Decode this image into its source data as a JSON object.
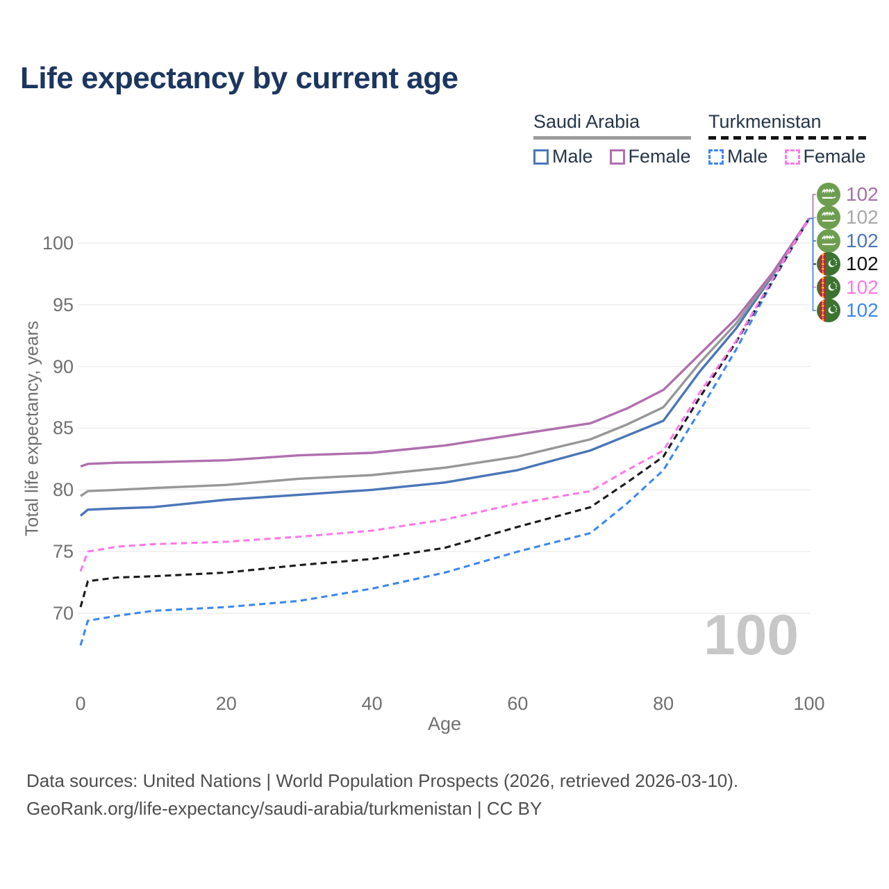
{
  "title": "Life expectancy by current age",
  "legend": {
    "groups": [
      {
        "country": "Saudi Arabia",
        "line_style": "solid",
        "items": [
          {
            "label": "Male"
          },
          {
            "label": "Female"
          }
        ]
      },
      {
        "country": "Turkmenistan",
        "line_style": "dashed",
        "items": [
          {
            "label": "Male"
          },
          {
            "label": "Female"
          }
        ]
      }
    ]
  },
  "colors": {
    "title": "#1c3660",
    "legend_text": "#25364a",
    "tick": "#6f6f6f",
    "grid": "#ececec",
    "watermark": "#c7c7c7",
    "footer": "#4e4e4e",
    "underline_solid": "#9c9c9c",
    "underline_dash": "#141414",
    "sa_male": "#4a76b8",
    "sa_female": "#b06fae",
    "sa_all": "#979797",
    "tm_male": "#3d87f0",
    "tm_female": "#ff78e8",
    "tm_all": "#1a1a1a"
  },
  "chart_data": {
    "type": "line",
    "title": "Life expectancy by current age",
    "xlabel": "Age",
    "ylabel": "Total life expectancy, years",
    "xlim": [
      0,
      100
    ],
    "ylim": [
      67,
      103
    ],
    "xticks": [
      0,
      20,
      40,
      60,
      80,
      100
    ],
    "yticks": [
      70,
      75,
      80,
      85,
      90,
      95,
      100
    ],
    "grid": "horizontal",
    "watermark": "100",
    "x": [
      0,
      1,
      5,
      10,
      20,
      30,
      40,
      50,
      60,
      70,
      75,
      80,
      85,
      90,
      95,
      100
    ],
    "series": [
      {
        "name": "Saudi Arabia — Male",
        "country": "Saudi Arabia",
        "sex": "Male",
        "line_style": "solid",
        "color": "#4a76b8",
        "values": [
          77.9,
          78.4,
          78.5,
          78.6,
          79.2,
          79.6,
          80.0,
          80.6,
          81.6,
          83.2,
          84.4,
          85.6,
          89.6,
          93.1,
          97.4,
          102
        ]
      },
      {
        "name": "Saudi Arabia — All",
        "country": "Saudi Arabia",
        "sex": "All",
        "line_style": "solid",
        "color": "#979797",
        "values": [
          79.5,
          79.9,
          80.0,
          80.15,
          80.4,
          80.9,
          81.2,
          81.8,
          82.7,
          84.1,
          85.3,
          86.7,
          90.3,
          93.5,
          97.5,
          102
        ]
      },
      {
        "name": "Saudi Arabia — Female",
        "country": "Saudi Arabia",
        "sex": "Female",
        "line_style": "solid",
        "color": "#b06fae",
        "values": [
          81.9,
          82.1,
          82.2,
          82.25,
          82.4,
          82.8,
          83.0,
          83.6,
          84.5,
          85.4,
          86.6,
          88.1,
          91.0,
          93.9,
          97.6,
          102
        ]
      },
      {
        "name": "Turkmenistan — Male",
        "country": "Turkmenistan",
        "sex": "Male",
        "line_style": "dashed",
        "color": "#3d87f0",
        "values": [
          67.4,
          69.4,
          69.8,
          70.2,
          70.5,
          71.0,
          72.0,
          73.3,
          75.0,
          76.5,
          78.9,
          81.6,
          86.4,
          91.4,
          96.9,
          102
        ]
      },
      {
        "name": "Turkmenistan — All",
        "country": "Turkmenistan",
        "sex": "All",
        "line_style": "dashed",
        "color": "#1a1a1a",
        "values": [
          70.5,
          72.6,
          72.9,
          73.0,
          73.3,
          73.9,
          74.4,
          75.3,
          77.0,
          78.6,
          80.6,
          82.7,
          87.5,
          92.0,
          97.0,
          102
        ]
      },
      {
        "name": "Turkmenistan — Female",
        "country": "Turkmenistan",
        "sex": "Female",
        "line_style": "dashed",
        "color": "#ff78e8",
        "values": [
          73.4,
          75.0,
          75.4,
          75.6,
          75.8,
          76.2,
          76.7,
          77.6,
          78.9,
          79.9,
          81.6,
          83.2,
          87.9,
          92.1,
          97.1,
          102
        ]
      }
    ],
    "end_labels": [
      {
        "flag": "saudi-arabia",
        "value": "102",
        "color": "#a76fa9"
      },
      {
        "flag": "saudi-arabia",
        "value": "102",
        "color": "#a8a8a8"
      },
      {
        "flag": "saudi-arabia",
        "value": "102",
        "color": "#4a76b8"
      },
      {
        "flag": "turkmenistan",
        "value": "102",
        "color": "#111111"
      },
      {
        "flag": "turkmenistan",
        "value": "102",
        "color": "#ff78e8"
      },
      {
        "flag": "turkmenistan",
        "value": "102",
        "color": "#3d87f0"
      }
    ]
  },
  "footer": {
    "line1": "Data sources: United Nations | World Population Prospects (2026, retrieved 2026-03-10).",
    "line2": "GeoRank.org/life-expectancy/saudi-arabia/turkmenistan | CC BY"
  }
}
